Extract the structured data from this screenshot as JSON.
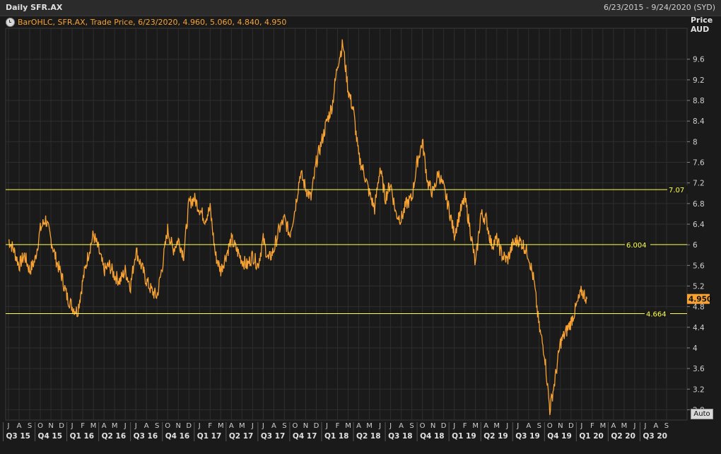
{
  "header": {
    "title": "Daily SFR.AX",
    "date_range": "6/23/2015 - 9/24/2020 (SYD)"
  },
  "legend": {
    "icon": "clock-icon",
    "text": "BarOHLC, SFR.AX, Trade Price, 6/23/2020, 4.960, 5.060, 4.840, 4.950"
  },
  "axis_header": {
    "line1": "Price",
    "line2": "AUD"
  },
  "auto_button": "Auto",
  "colors": {
    "background": "#1a1a1a",
    "price": "#f7a232",
    "level": "#ffff4d",
    "grid": "#2e2e2e"
  },
  "chart_data": {
    "type": "line",
    "title": "Daily SFR.AX",
    "ylabel": "Price AUD",
    "ylim": [
      2.6,
      10.2
    ],
    "y_ticks": [
      "9.6",
      "9.2",
      "8.8",
      "8.4",
      "8",
      "7.6",
      "7.2",
      "6.8",
      "6.4",
      "6",
      "5.6",
      "5.2",
      "4.8",
      "4.4",
      "4",
      "3.6",
      "3.2",
      "2.8"
    ],
    "x_months": [
      "J",
      "A",
      "S",
      "O",
      "N",
      "D",
      "J",
      "F",
      "M",
      "A",
      "M",
      "J",
      "J",
      "A",
      "S",
      "O",
      "N",
      "D",
      "J",
      "F",
      "M",
      "A",
      "M",
      "J",
      "J",
      "A",
      "S",
      "O",
      "N",
      "D",
      "J",
      "F",
      "M",
      "A",
      "M",
      "J",
      "J",
      "A",
      "S",
      "O",
      "N",
      "D",
      "J",
      "F",
      "M",
      "A",
      "M",
      "J",
      "J",
      "A",
      "S",
      "O",
      "N",
      "D",
      "J",
      "F",
      "M",
      "A",
      "M",
      "J",
      "J",
      "A",
      "S"
    ],
    "x_quarters": [
      "Q3 15",
      "Q4 15",
      "Q1 16",
      "Q2 16",
      "Q3 16",
      "Q4 16",
      "Q1 17",
      "Q2 17",
      "Q3 17",
      "Q4 17",
      "Q1 18",
      "Q2 18",
      "Q3 18",
      "Q4 18",
      "Q1 19",
      "Q2 19",
      "Q3 19",
      "Q4 19",
      "Q1 20",
      "Q2 20",
      "Q3 20"
    ],
    "last_price": "4.950",
    "levels": [
      {
        "value": 7.07,
        "label": "7.07"
      },
      {
        "value": 6.004,
        "label": "6.004"
      },
      {
        "value": 4.664,
        "label": "4.664"
      }
    ],
    "series": [
      {
        "points": [
          [
            0,
            6.1
          ],
          [
            0.5,
            5.9
          ],
          [
            1,
            5.6
          ],
          [
            1.5,
            5.8
          ],
          [
            2,
            5.5
          ],
          [
            2.5,
            5.7
          ],
          [
            3,
            6.3
          ],
          [
            3.5,
            6.5
          ],
          [
            4,
            6.1
          ],
          [
            4.5,
            5.7
          ],
          [
            5,
            5.4
          ],
          [
            5.5,
            5.0
          ],
          [
            6,
            4.8
          ],
          [
            6.5,
            4.7
          ],
          [
            7,
            5.3
          ],
          [
            7.5,
            5.8
          ],
          [
            8,
            6.2
          ],
          [
            8.5,
            5.9
          ],
          [
            9,
            5.5
          ],
          [
            9.5,
            5.6
          ],
          [
            10,
            5.4
          ],
          [
            10.5,
            5.3
          ],
          [
            11,
            5.5
          ],
          [
            11.5,
            5.2
          ],
          [
            12,
            5.9
          ],
          [
            12.5,
            5.6
          ],
          [
            13,
            5.3
          ],
          [
            13.5,
            5.1
          ],
          [
            14,
            5.0
          ],
          [
            14.5,
            5.6
          ],
          [
            15,
            6.3
          ],
          [
            15.5,
            5.9
          ],
          [
            16,
            6.1
          ],
          [
            16.5,
            5.8
          ],
          [
            17,
            6.8
          ],
          [
            17.5,
            6.9
          ],
          [
            18,
            6.7
          ],
          [
            18.5,
            6.5
          ],
          [
            19,
            6.7
          ],
          [
            19.5,
            5.8
          ],
          [
            20,
            5.5
          ],
          [
            20.5,
            5.8
          ],
          [
            21,
            6.1
          ],
          [
            21.5,
            5.9
          ],
          [
            22,
            5.7
          ],
          [
            22.5,
            5.6
          ],
          [
            23,
            5.8
          ],
          [
            23.5,
            5.6
          ],
          [
            24,
            6.1
          ],
          [
            24.5,
            5.7
          ],
          [
            25,
            5.9
          ],
          [
            25.5,
            6.3
          ],
          [
            26,
            6.5
          ],
          [
            26.5,
            6.2
          ],
          [
            27,
            6.7
          ],
          [
            27.5,
            7.4
          ],
          [
            28,
            7.1
          ],
          [
            28.5,
            6.9
          ],
          [
            29,
            7.6
          ],
          [
            29.5,
            8.0
          ],
          [
            30,
            8.4
          ],
          [
            30.5,
            8.7
          ],
          [
            31,
            9.5
          ],
          [
            31.5,
            9.9
          ],
          [
            32,
            9.0
          ],
          [
            32.5,
            8.6
          ],
          [
            33,
            7.7
          ],
          [
            33.5,
            7.4
          ],
          [
            34,
            7.0
          ],
          [
            34.5,
            6.7
          ],
          [
            35,
            7.5
          ],
          [
            35.5,
            6.9
          ],
          [
            36,
            7.2
          ],
          [
            36.5,
            6.6
          ],
          [
            37,
            6.5
          ],
          [
            37.5,
            6.8
          ],
          [
            38,
            6.9
          ],
          [
            38.5,
            7.6
          ],
          [
            39,
            8.0
          ],
          [
            39.5,
            7.2
          ],
          [
            40,
            7.0
          ],
          [
            40.5,
            7.4
          ],
          [
            41,
            7.1
          ],
          [
            41.5,
            6.7
          ],
          [
            42,
            6.2
          ],
          [
            42.5,
            6.6
          ],
          [
            43,
            6.9
          ],
          [
            43.5,
            6.3
          ],
          [
            44,
            5.6
          ],
          [
            44.5,
            6.6
          ],
          [
            45,
            6.5
          ],
          [
            45.5,
            6.0
          ],
          [
            46,
            6.1
          ],
          [
            46.5,
            5.8
          ],
          [
            47,
            5.7
          ],
          [
            47.5,
            6.0
          ],
          [
            48,
            6.1
          ],
          [
            48.5,
            6.0
          ],
          [
            49,
            5.8
          ],
          [
            49.5,
            5.3
          ],
          [
            50,
            4.4
          ],
          [
            50.5,
            3.9
          ],
          [
            51,
            2.8
          ],
          [
            51.5,
            3.4
          ],
          [
            52,
            4.1
          ],
          [
            52.5,
            4.3
          ],
          [
            53,
            4.5
          ],
          [
            53.5,
            4.8
          ],
          [
            54,
            5.1
          ],
          [
            54.5,
            4.95
          ]
        ]
      }
    ]
  }
}
